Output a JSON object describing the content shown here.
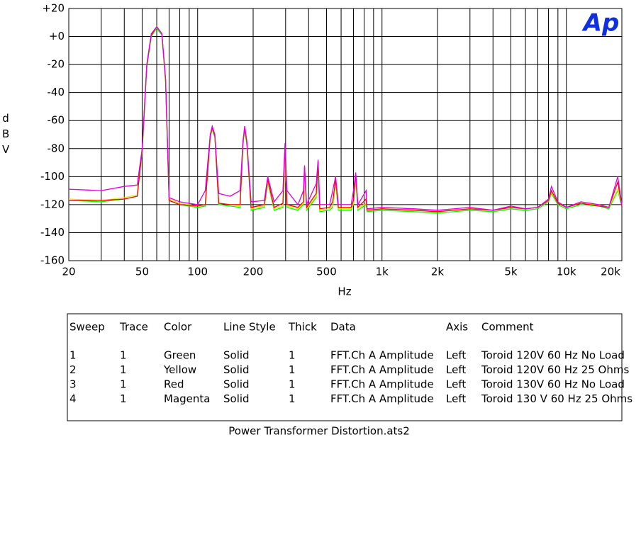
{
  "chart_data": {
    "type": "line",
    "x_label": "Hz",
    "y_label": "dBV",
    "logo": "Ap",
    "xscale": "log",
    "grid": true,
    "xlim": [
      20,
      20000
    ],
    "ylim": [
      -160,
      20
    ],
    "xticks": [
      20,
      50,
      100,
      200,
      500,
      {
        "value": 1000,
        "label": "1k"
      },
      {
        "value": 2000,
        "label": "2k"
      },
      {
        "value": 5000,
        "label": "5k"
      },
      {
        "value": 10000,
        "label": "10k"
      },
      {
        "value": 20000,
        "label": "20k"
      }
    ],
    "xminorticks": [
      30,
      40,
      60,
      70,
      80,
      90,
      300,
      400,
      600,
      700,
      800,
      900,
      3000,
      4000,
      6000,
      7000,
      8000,
      9000
    ],
    "yticks": [
      {
        "value": 20,
        "label": "+20"
      },
      {
        "value": 0,
        "label": "+0"
      },
      -20,
      -40,
      -60,
      -80,
      -100,
      -120,
      -140,
      -160
    ],
    "x": [
      20,
      30,
      40,
      47,
      50,
      53,
      56,
      60,
      64,
      67,
      70,
      80,
      100,
      110,
      117,
      120,
      124,
      130,
      150,
      170,
      176,
      180,
      185,
      195,
      230,
      240,
      260,
      290,
      298,
      305,
      350,
      375,
      380,
      390,
      440,
      450,
      460,
      520,
      540,
      560,
      580,
      680,
      700,
      720,
      740,
      820,
      830,
      1000,
      1500,
      2000,
      3000,
      4000,
      5000,
      6000,
      7000,
      8000,
      8300,
      9000,
      10000,
      12000,
      15000,
      17000,
      19000,
      20000
    ],
    "series": [
      {
        "color": "#00ff00",
        "values": [
          -117,
          -118,
          -116,
          -114,
          -82,
          -22,
          0,
          6,
          1,
          -32,
          -117,
          -120,
          -122,
          -121,
          -72,
          -66,
          -72,
          -120,
          -121,
          -122,
          -78,
          -66,
          -78,
          -124,
          -122,
          -104,
          -124,
          -122,
          -80,
          -122,
          -124,
          -120,
          -95,
          -124,
          -115,
          -92,
          -125,
          -124,
          -122,
          -105,
          -124,
          -124,
          -120,
          -100,
          -124,
          -120,
          -125,
          -124,
          -125,
          -126,
          -124,
          -125,
          -123,
          -124,
          -123,
          -118,
          -112,
          -120,
          -123,
          -120,
          -121,
          -123,
          -110,
          -121
        ]
      },
      {
        "color": "#e8e800",
        "values": [
          -116,
          -117,
          -115,
          -113,
          -81,
          -21,
          1,
          7,
          2,
          -31,
          -116,
          -119,
          -121,
          -120,
          -71,
          -65,
          -71,
          -119,
          -120,
          -121,
          -77,
          -65,
          -77,
          -123,
          -121,
          -103,
          -123,
          -121,
          -79,
          -121,
          -123,
          -119,
          -94,
          -123,
          -114,
          -91,
          -124,
          -123,
          -121,
          -104,
          -123,
          -123,
          -119,
          -99,
          -123,
          -119,
          -124,
          -123,
          -124,
          -125,
          -123,
          -124,
          -122,
          -123,
          -122,
          -117,
          -111,
          -119,
          -122,
          -119,
          -120,
          -122,
          -109,
          -120
        ]
      },
      {
        "color": "#ff0000",
        "values": [
          -117,
          -117,
          -116,
          -114,
          -81,
          -21,
          1,
          7,
          2,
          -31,
          -117,
          -120,
          -121,
          -120,
          -71,
          -65,
          -71,
          -119,
          -120,
          -120,
          -76,
          -65,
          -76,
          -122,
          -120,
          -102,
          -122,
          -119,
          -78,
          -120,
          -122,
          -118,
          -93,
          -122,
          -112,
          -90,
          -123,
          -122,
          -118,
          -102,
          -122,
          -122,
          -117,
          -98,
          -122,
          -116,
          -124,
          -123,
          -124,
          -125,
          -123,
          -124,
          -122,
          -123,
          -122,
          -117,
          -110,
          -119,
          -122,
          -119,
          -121,
          -122,
          -104,
          -121
        ]
      },
      {
        "color": "#e000e0",
        "values": [
          -109,
          -110,
          -107,
          -106,
          -80,
          -20,
          2,
          7,
          2,
          -30,
          -115,
          -118,
          -120,
          -110,
          -70,
          -64,
          -70,
          -112,
          -114,
          -110,
          -75,
          -64,
          -75,
          -118,
          -117,
          -100,
          -118,
          -110,
          -76,
          -110,
          -120,
          -110,
          -92,
          -120,
          -105,
          -88,
          -120,
          -120,
          -110,
          -100,
          -120,
          -120,
          -110,
          -97,
          -120,
          -110,
          -123,
          -122,
          -123,
          -124,
          -122,
          -124,
          -121,
          -123,
          -122,
          -116,
          -107,
          -118,
          -122,
          -118,
          -120,
          -122,
          -100,
          -120
        ]
      }
    ]
  },
  "table": {
    "columns": [
      "Sweep",
      "Trace",
      "Color",
      "Line Style",
      "Thick",
      "Data",
      "Axis",
      "Comment"
    ],
    "rows": [
      [
        "1",
        "1",
        "Green",
        "Solid",
        "1",
        "FFT.Ch A Amplitude",
        "Left",
        "Toroid 120V 60 Hz No Load"
      ],
      [
        "2",
        "1",
        "Yellow",
        "Solid",
        "1",
        "FFT.Ch A Amplitude",
        "Left",
        "Toroid 120V 60 Hz 25 Ohms"
      ],
      [
        "3",
        "1",
        "Red",
        "Solid",
        "1",
        "FFT.Ch A Amplitude",
        "Left",
        "Toroid 130V 60 Hz No Load"
      ],
      [
        "4",
        "1",
        "Magenta",
        "Solid",
        "1",
        "FFT.Ch A Amplitude",
        "Left",
        "Toroid 130 V 60 Hz 25 Ohms"
      ]
    ]
  },
  "file_name": "Power Transformer Distortion.ats2"
}
